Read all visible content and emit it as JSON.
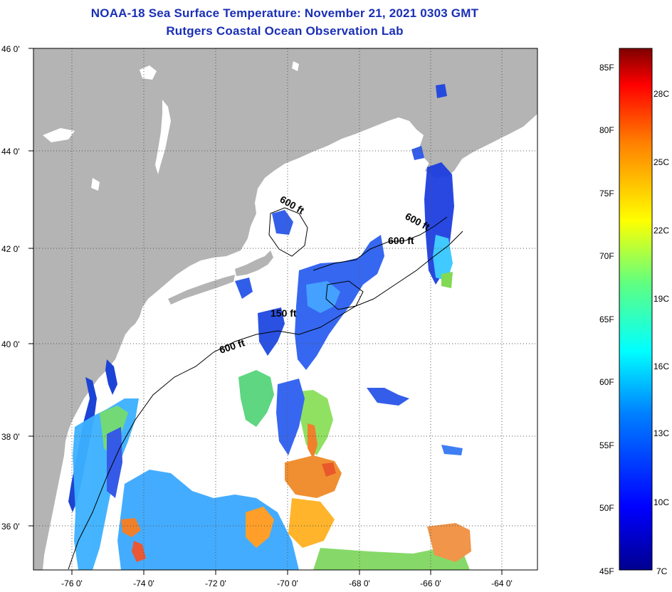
{
  "header": {
    "title": "NOAA-18 Sea Surface Temperature:  November 21, 2021 0303 GMT",
    "subtitle": "Rutgers Coastal Ocean Observation Lab"
  },
  "axes": {
    "lat_ticks": [
      "46 0'",
      "44 0'",
      "42 0'",
      "40 0'",
      "38 0'",
      "36 0'"
    ],
    "lon_ticks": [
      "-76 0'",
      "-74 0'",
      "-72 0'",
      "-70 0'",
      "-68 0'",
      "-66 0'",
      "-64 0'"
    ],
    "lat_range": [
      35,
      46
    ],
    "lon_range": [
      -77,
      -63.5
    ]
  },
  "contours": [
    "600 ft",
    "600 ft",
    "600 ft",
    "150 ft",
    "600 ft"
  ],
  "colorbar": {
    "fahrenheit": [
      "85F",
      "80F",
      "75F",
      "70F",
      "65F",
      "60F",
      "55F",
      "50F",
      "45F"
    ],
    "celsius": [
      "28C",
      "25C",
      "22C",
      "19C",
      "16C",
      "13C",
      "10C",
      "7C"
    ],
    "min_c": 7,
    "max_c": 30
  },
  "colors": {
    "land": "#b4b4b4",
    "title": "#1a2fb5",
    "cloud": "#ffffff"
  }
}
